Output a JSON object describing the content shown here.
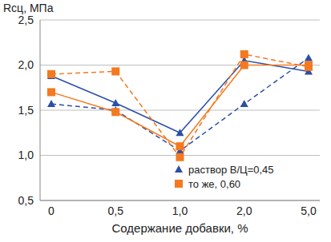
{
  "chart_data": {
    "type": "line",
    "y_label": "Rсц, МПа",
    "x_label": "Содержание добавки, %",
    "categories": [
      "0",
      "0,5",
      "1,0",
      "2,0",
      "5,0"
    ],
    "ylim": [
      0.5,
      2.5
    ],
    "yticks": [
      {
        "value": 0.5,
        "label": "0,5"
      },
      {
        "value": 1.0,
        "label": "1,0"
      },
      {
        "value": 1.5,
        "label": "1,5"
      },
      {
        "value": 2.0,
        "label": "2,0"
      },
      {
        "value": 2.5,
        "label": "2,5"
      }
    ],
    "grid": true,
    "legend": "lower right",
    "series": [
      {
        "name": "раствор В/Ц=0,45",
        "color": "#2b4fa6",
        "marker": "triangle",
        "line_style": "solid",
        "values": [
          1.88,
          1.58,
          1.25,
          2.05,
          1.93
        ]
      },
      {
        "name": "раствор В/Ц=0,45",
        "color": "#2b4fa6",
        "marker": "triangle",
        "line_style": "dashed",
        "values": [
          1.57,
          1.5,
          1.05,
          1.57,
          2.08
        ]
      },
      {
        "name": "то же, 0,60",
        "color": "#f47920",
        "marker": "square",
        "line_style": "solid",
        "values": [
          1.7,
          1.48,
          1.1,
          2.0,
          2.0
        ]
      },
      {
        "name": "то же, 0,60",
        "color": "#f47920",
        "marker": "square",
        "line_style": "dashed",
        "values": [
          1.9,
          1.93,
          0.98,
          2.12,
          1.98
        ]
      }
    ]
  }
}
